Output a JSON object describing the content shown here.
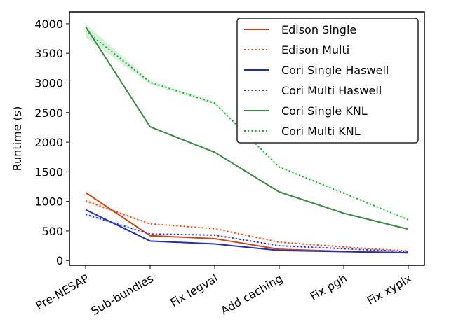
{
  "chart_data": {
    "type": "line",
    "title": "",
    "xlabel": "",
    "ylabel": "Runtime (s)",
    "categories": [
      "Pre-NESAP",
      "Sub-bundles",
      "Fix legval",
      "Add caching",
      "Fix pgh",
      "Fix xypix"
    ],
    "ylim": [
      -80,
      4200
    ],
    "yticks": [
      0,
      500,
      1000,
      1500,
      2000,
      2500,
      3000,
      3500,
      4000
    ],
    "grid": false,
    "legend_position": "top-right",
    "series": [
      {
        "name": "Edison Single",
        "color": "#cc4411",
        "style": "solid",
        "values": [
          1150,
          420,
          370,
          190,
          155,
          130
        ]
      },
      {
        "name": "Edison Multi",
        "color": "#e0501a",
        "style": "dotted",
        "values": [
          1010,
          620,
          540,
          310,
          230,
          160
        ]
      },
      {
        "name": "Cori Single Haswell",
        "color": "#1f2fb0",
        "style": "solid",
        "values": [
          860,
          330,
          280,
          170,
          150,
          130
        ]
      },
      {
        "name": "Cori Multi Haswell",
        "color": "#2233dd",
        "style": "dotted",
        "values": [
          780,
          450,
          430,
          250,
          200,
          150
        ]
      },
      {
        "name": "Cori Single KNL",
        "color": "#3a8a44",
        "style": "solid",
        "values": [
          3950,
          2260,
          1830,
          1160,
          800,
          530
        ]
      },
      {
        "name": "Cori Multi KNL",
        "color": "#22b030",
        "style": "dotted",
        "values": [
          3880,
          3010,
          2660,
          1580,
          1140,
          690
        ]
      }
    ]
  }
}
